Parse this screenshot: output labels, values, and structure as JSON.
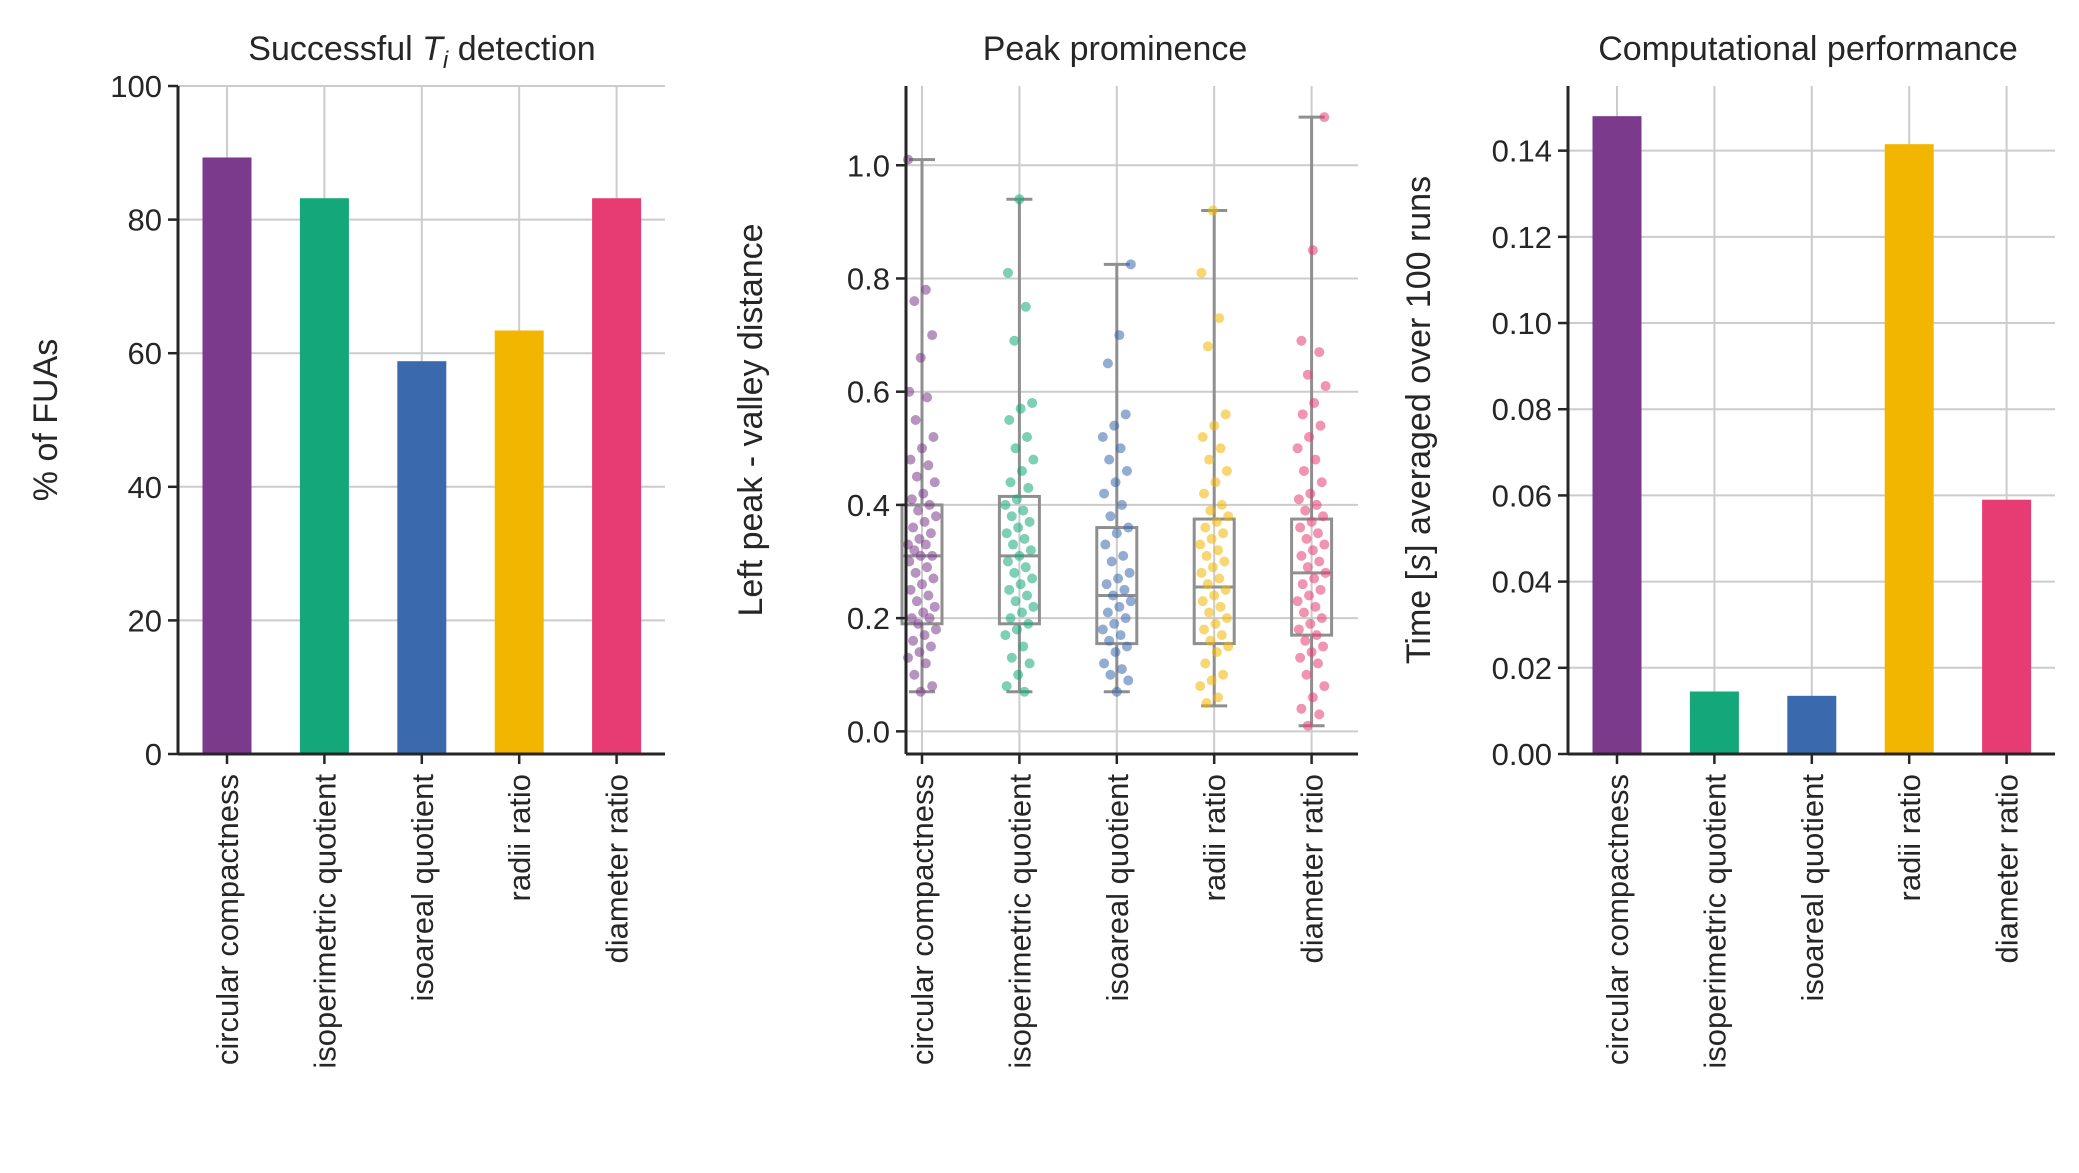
{
  "colors": {
    "circular compactness": "#7b3a8c",
    "isoperimetric quotient": "#13a77a",
    "isoareal quotient": "#3a69ad",
    "radii ratio": "#f2b600",
    "diameter ratio": "#e63c73",
    "grid": "#cccccc",
    "axis": "#262626",
    "box": "#8f8f8f"
  },
  "chart_data": [
    {
      "type": "bar",
      "title_prefix": "Successful ",
      "title_math": "T",
      "title_sub": "i",
      "title_suffix": " detection",
      "xlabel": "",
      "ylabel": "% of FUAs",
      "categories": [
        "circular compactness",
        "isoperimetric quotient",
        "isoareal quotient",
        "radii ratio",
        "diameter ratio"
      ],
      "values": [
        89.3,
        83.2,
        58.8,
        63.4,
        83.2
      ],
      "ylim": [
        0,
        100
      ],
      "yticks": [
        0,
        20,
        40,
        60,
        80,
        100
      ],
      "ytick_labels": [
        "0",
        "20",
        "40",
        "60",
        "80",
        "100"
      ],
      "grid": true
    },
    {
      "type": "box",
      "title": "Peak prominence",
      "xlabel": "",
      "ylabel": "Left peak - valley distance",
      "categories": [
        "circular compactness",
        "isoperimetric quotient",
        "isoareal quotient",
        "radii ratio",
        "diameter ratio"
      ],
      "ylim": [
        -0.04,
        1.14
      ],
      "yticks": [
        0.0,
        0.2,
        0.4,
        0.6,
        0.8,
        1.0
      ],
      "ytick_labels": [
        "0.0",
        "0.2",
        "0.4",
        "0.6",
        "0.8",
        "1.0"
      ],
      "grid": true,
      "boxes": [
        {
          "whislo": 0.07,
          "q1": 0.19,
          "med": 0.31,
          "q3": 0.4,
          "whishi": 1.01
        },
        {
          "whislo": 0.07,
          "q1": 0.19,
          "med": 0.31,
          "q3": 0.415,
          "whishi": 0.94
        },
        {
          "whislo": 0.07,
          "q1": 0.155,
          "med": 0.24,
          "q3": 0.36,
          "whishi": 0.825
        },
        {
          "whislo": 0.045,
          "q1": 0.155,
          "med": 0.255,
          "q3": 0.375,
          "whishi": 0.92
        },
        {
          "whislo": 0.01,
          "q1": 0.17,
          "med": 0.28,
          "q3": 0.375,
          "whishi": 1.085
        }
      ],
      "points": [
        [
          1.01,
          0.78,
          0.76,
          0.7,
          0.66,
          0.6,
          0.59,
          0.55,
          0.52,
          0.5,
          0.48,
          0.47,
          0.45,
          0.44,
          0.42,
          0.41,
          0.4,
          0.39,
          0.38,
          0.37,
          0.36,
          0.35,
          0.34,
          0.33,
          0.33,
          0.32,
          0.31,
          0.31,
          0.3,
          0.29,
          0.28,
          0.27,
          0.26,
          0.25,
          0.24,
          0.23,
          0.22,
          0.21,
          0.2,
          0.2,
          0.19,
          0.18,
          0.17,
          0.16,
          0.15,
          0.14,
          0.13,
          0.12,
          0.1,
          0.08,
          0.07
        ],
        [
          0.94,
          0.81,
          0.75,
          0.69,
          0.58,
          0.57,
          0.55,
          0.52,
          0.5,
          0.48,
          0.46,
          0.44,
          0.43,
          0.41,
          0.4,
          0.39,
          0.38,
          0.37,
          0.36,
          0.35,
          0.34,
          0.33,
          0.32,
          0.31,
          0.3,
          0.29,
          0.28,
          0.27,
          0.26,
          0.25,
          0.24,
          0.23,
          0.22,
          0.21,
          0.2,
          0.19,
          0.18,
          0.17,
          0.15,
          0.13,
          0.12,
          0.1,
          0.08,
          0.07
        ],
        [
          0.825,
          0.7,
          0.65,
          0.56,
          0.54,
          0.52,
          0.5,
          0.48,
          0.46,
          0.44,
          0.42,
          0.4,
          0.38,
          0.36,
          0.35,
          0.33,
          0.31,
          0.3,
          0.28,
          0.27,
          0.26,
          0.25,
          0.24,
          0.23,
          0.22,
          0.21,
          0.2,
          0.19,
          0.18,
          0.17,
          0.16,
          0.15,
          0.14,
          0.12,
          0.11,
          0.1,
          0.09,
          0.07
        ],
        [
          0.92,
          0.81,
          0.73,
          0.68,
          0.56,
          0.54,
          0.52,
          0.5,
          0.48,
          0.46,
          0.44,
          0.42,
          0.4,
          0.39,
          0.38,
          0.37,
          0.36,
          0.35,
          0.34,
          0.33,
          0.32,
          0.31,
          0.3,
          0.29,
          0.28,
          0.27,
          0.26,
          0.25,
          0.24,
          0.23,
          0.22,
          0.21,
          0.2,
          0.19,
          0.18,
          0.17,
          0.16,
          0.15,
          0.14,
          0.12,
          0.1,
          0.09,
          0.08,
          0.06,
          0.05
        ],
        [
          1.085,
          0.85,
          0.69,
          0.67,
          0.63,
          0.61,
          0.58,
          0.56,
          0.54,
          0.52,
          0.5,
          0.48,
          0.46,
          0.44,
          0.42,
          0.41,
          0.4,
          0.39,
          0.38,
          0.37,
          0.36,
          0.35,
          0.34,
          0.33,
          0.32,
          0.31,
          0.3,
          0.29,
          0.28,
          0.27,
          0.26,
          0.25,
          0.24,
          0.23,
          0.22,
          0.21,
          0.2,
          0.19,
          0.18,
          0.17,
          0.16,
          0.15,
          0.14,
          0.13,
          0.12,
          0.1,
          0.08,
          0.06,
          0.04,
          0.03,
          0.01
        ]
      ]
    },
    {
      "type": "bar",
      "title": "Computational performance",
      "xlabel": "",
      "ylabel_prefix": "Time [",
      "ylabel_math": "s",
      "ylabel_suffix": "] averaged over 100 runs",
      "categories": [
        "circular compactness",
        "isoperimetric quotient",
        "isoareal quotient",
        "radii ratio",
        "diameter ratio"
      ],
      "values": [
        0.148,
        0.0145,
        0.0135,
        0.1415,
        0.059
      ],
      "ylim": [
        0,
        0.155
      ],
      "yticks": [
        0.0,
        0.02,
        0.04,
        0.06,
        0.08,
        0.1,
        0.12,
        0.14
      ],
      "ytick_labels": [
        "0.00",
        "0.02",
        "0.04",
        "0.06",
        "0.08",
        "0.10",
        "0.12",
        "0.14"
      ],
      "grid": true
    }
  ]
}
